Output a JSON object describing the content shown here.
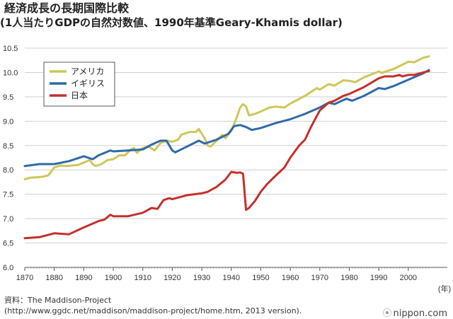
{
  "title": "経済成長の長期国際比較",
  "subtitle": "(1人当たりGDPの自然対数値、1990年基準Geary-Khamis dollar)",
  "source_line1": "資料：The Maddison-Project",
  "source_line2": "(http://www.ggdc.net/maddison/maddison-project/home.htm, 2013 version).",
  "brand": "nippon.com",
  "chart_data": {
    "type": "line",
    "title": "経済成長の長期国際比較",
    "xlabel": "(年)",
    "ylabel": "",
    "xlim": [
      1870,
      2007
    ],
    "ylim": [
      6.0,
      10.5
    ],
    "xticks": [
      1870,
      1880,
      1890,
      1900,
      1910,
      1920,
      1930,
      1940,
      1950,
      1960,
      1970,
      1980,
      1990,
      2000
    ],
    "yticks": [
      "6.0",
      "6.5",
      "7.0",
      "7.5",
      "8.0",
      "8.5",
      "9.0",
      "9.5",
      "10.0",
      "10.5"
    ],
    "grid": "horizontal",
    "legend_position": "top-left",
    "series": [
      {
        "name": "アメリカ",
        "color": "#cdc75a",
        "points": [
          [
            1870,
            7.81
          ],
          [
            1872,
            7.84
          ],
          [
            1874,
            7.85
          ],
          [
            1876,
            7.86
          ],
          [
            1878,
            7.89
          ],
          [
            1880,
            8.05
          ],
          [
            1882,
            8.09
          ],
          [
            1884,
            8.08
          ],
          [
            1886,
            8.09
          ],
          [
            1888,
            8.1
          ],
          [
            1890,
            8.15
          ],
          [
            1892,
            8.2
          ],
          [
            1893,
            8.12
          ],
          [
            1894,
            8.08
          ],
          [
            1896,
            8.12
          ],
          [
            1898,
            8.2
          ],
          [
            1900,
            8.22
          ],
          [
            1902,
            8.3
          ],
          [
            1904,
            8.3
          ],
          [
            1906,
            8.42
          ],
          [
            1907,
            8.45
          ],
          [
            1908,
            8.35
          ],
          [
            1910,
            8.45
          ],
          [
            1912,
            8.48
          ],
          [
            1914,
            8.4
          ],
          [
            1916,
            8.55
          ],
          [
            1918,
            8.6
          ],
          [
            1920,
            8.58
          ],
          [
            1922,
            8.62
          ],
          [
            1923,
            8.72
          ],
          [
            1926,
            8.78
          ],
          [
            1928,
            8.78
          ],
          [
            1929,
            8.84
          ],
          [
            1930,
            8.74
          ],
          [
            1931,
            8.65
          ],
          [
            1932,
            8.5
          ],
          [
            1933,
            8.48
          ],
          [
            1935,
            8.6
          ],
          [
            1937,
            8.72
          ],
          [
            1938,
            8.65
          ],
          [
            1940,
            8.8
          ],
          [
            1941,
            8.95
          ],
          [
            1942,
            9.1
          ],
          [
            1943,
            9.28
          ],
          [
            1944,
            9.35
          ],
          [
            1945,
            9.3
          ],
          [
            1946,
            9.12
          ],
          [
            1948,
            9.15
          ],
          [
            1950,
            9.2
          ],
          [
            1953,
            9.28
          ],
          [
            1955,
            9.3
          ],
          [
            1958,
            9.28
          ],
          [
            1960,
            9.36
          ],
          [
            1965,
            9.52
          ],
          [
            1969,
            9.68
          ],
          [
            1970,
            9.65
          ],
          [
            1973,
            9.76
          ],
          [
            1975,
            9.73
          ],
          [
            1978,
            9.84
          ],
          [
            1980,
            9.83
          ],
          [
            1982,
            9.8
          ],
          [
            1985,
            9.9
          ],
          [
            1990,
            10.02
          ],
          [
            1991,
            9.99
          ],
          [
            1995,
            10.07
          ],
          [
            2000,
            10.22
          ],
          [
            2002,
            10.21
          ],
          [
            2005,
            10.3
          ],
          [
            2007,
            10.33
          ]
        ]
      },
      {
        "name": "イギリス",
        "color": "#2f6aa7",
        "points": [
          [
            1870,
            8.08
          ],
          [
            1875,
            8.12
          ],
          [
            1880,
            8.12
          ],
          [
            1885,
            8.18
          ],
          [
            1890,
            8.28
          ],
          [
            1893,
            8.22
          ],
          [
            1895,
            8.3
          ],
          [
            1899,
            8.4
          ],
          [
            1900,
            8.38
          ],
          [
            1905,
            8.4
          ],
          [
            1910,
            8.42
          ],
          [
            1913,
            8.52
          ],
          [
            1916,
            8.6
          ],
          [
            1918,
            8.6
          ],
          [
            1920,
            8.4
          ],
          [
            1921,
            8.36
          ],
          [
            1925,
            8.48
          ],
          [
            1929,
            8.6
          ],
          [
            1931,
            8.54
          ],
          [
            1935,
            8.62
          ],
          [
            1939,
            8.74
          ],
          [
            1941,
            8.9
          ],
          [
            1943,
            8.92
          ],
          [
            1945,
            8.88
          ],
          [
            1947,
            8.82
          ],
          [
            1950,
            8.86
          ],
          [
            1955,
            8.96
          ],
          [
            1960,
            9.04
          ],
          [
            1965,
            9.15
          ],
          [
            1970,
            9.28
          ],
          [
            1973,
            9.38
          ],
          [
            1975,
            9.35
          ],
          [
            1979,
            9.46
          ],
          [
            1981,
            9.42
          ],
          [
            1985,
            9.52
          ],
          [
            1990,
            9.68
          ],
          [
            1992,
            9.66
          ],
          [
            1995,
            9.72
          ],
          [
            2000,
            9.85
          ],
          [
            2005,
            9.98
          ],
          [
            2007,
            10.05
          ]
        ]
      },
      {
        "name": "日本",
        "color": "#c4302b",
        "points": [
          [
            1870,
            6.6
          ],
          [
            1875,
            6.62
          ],
          [
            1880,
            6.7
          ],
          [
            1885,
            6.68
          ],
          [
            1890,
            6.82
          ],
          [
            1895,
            6.95
          ],
          [
            1897,
            6.98
          ],
          [
            1899,
            7.08
          ],
          [
            1900,
            7.05
          ],
          [
            1905,
            7.05
          ],
          [
            1910,
            7.12
          ],
          [
            1913,
            7.22
          ],
          [
            1915,
            7.2
          ],
          [
            1917,
            7.38
          ],
          [
            1919,
            7.42
          ],
          [
            1920,
            7.4
          ],
          [
            1925,
            7.48
          ],
          [
            1930,
            7.52
          ],
          [
            1932,
            7.55
          ],
          [
            1935,
            7.65
          ],
          [
            1938,
            7.8
          ],
          [
            1940,
            7.96
          ],
          [
            1942,
            7.94
          ],
          [
            1943,
            7.95
          ],
          [
            1944,
            7.92
          ],
          [
            1945,
            7.18
          ],
          [
            1946,
            7.22
          ],
          [
            1948,
            7.36
          ],
          [
            1950,
            7.55
          ],
          [
            1952,
            7.7
          ],
          [
            1955,
            7.88
          ],
          [
            1958,
            8.05
          ],
          [
            1960,
            8.25
          ],
          [
            1963,
            8.5
          ],
          [
            1965,
            8.62
          ],
          [
            1967,
            8.88
          ],
          [
            1970,
            9.22
          ],
          [
            1973,
            9.38
          ],
          [
            1975,
            9.42
          ],
          [
            1978,
            9.52
          ],
          [
            1980,
            9.56
          ],
          [
            1985,
            9.7
          ],
          [
            1990,
            9.88
          ],
          [
            1992,
            9.92
          ],
          [
            1995,
            9.92
          ],
          [
            1997,
            9.95
          ],
          [
            1998,
            9.92
          ],
          [
            2000,
            9.95
          ],
          [
            2002,
            9.95
          ],
          [
            2005,
            10.0
          ],
          [
            2007,
            10.03
          ]
        ]
      }
    ]
  }
}
